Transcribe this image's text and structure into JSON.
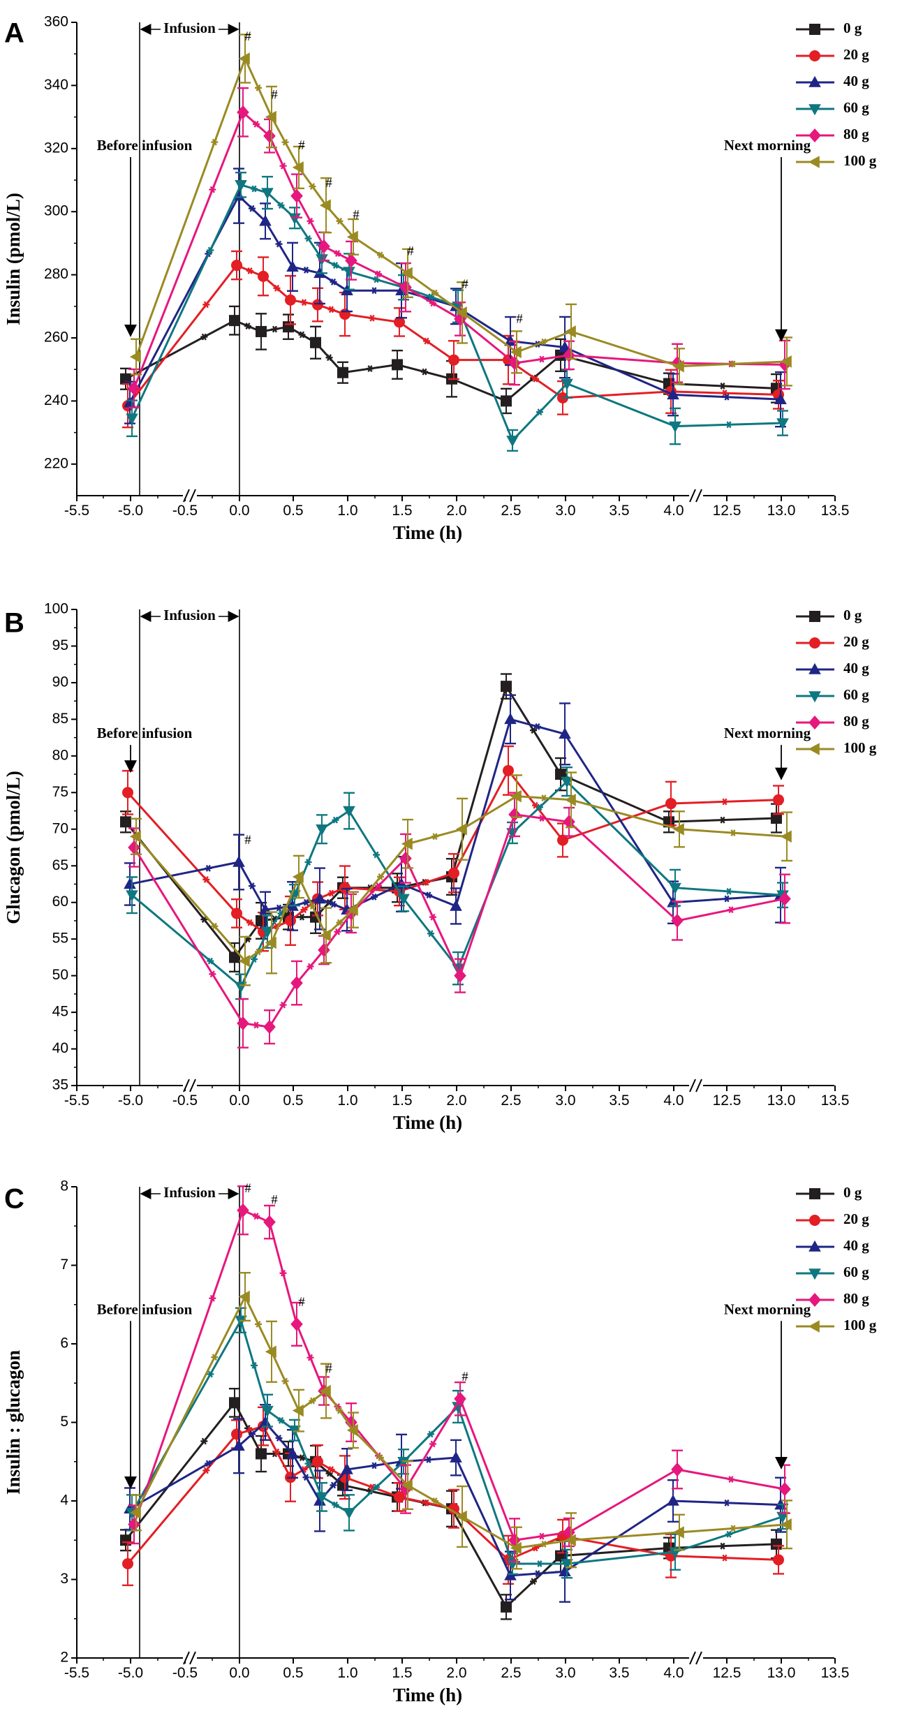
{
  "colors": {
    "0 g": "#231f20",
    "20 g": "#e31e24",
    "40 g": "#1f2586",
    "60 g": "#0e7780",
    "80 g": "#e6177d",
    "100 g": "#9a8a22"
  },
  "markers": {
    "0 g": "square",
    "20 g": "circle",
    "40 g": "triangle-up",
    "60 g": "triangle-down",
    "80 g": "diamond",
    "100 g": "triangle-left"
  },
  "chart_data": [
    {
      "type": "line",
      "panel": "A",
      "ylabel": "Insulin (pmol/L)",
      "xlabel": "Time (h)",
      "ylim": [
        210,
        360
      ],
      "yticks": [
        220,
        240,
        260,
        280,
        300,
        320,
        340,
        360
      ],
      "xticks": [
        "-5.5",
        "-5.0",
        "-0.5",
        "0.0",
        "0.5",
        "1.0",
        "1.5",
        "2.0",
        "2.5",
        "3.0",
        "3.5",
        "4.0",
        "12.5",
        "13.0",
        "13.5"
      ],
      "x": [
        "-5.0",
        "0.0",
        "0.25",
        "0.5",
        "0.75",
        "1.0",
        "1.5",
        "2.0",
        "2.5",
        "3.0",
        "4.0",
        "13.0"
      ],
      "series": [
        {
          "name": "0 g",
          "values": [
            247,
            265.5,
            262,
            263.5,
            258.5,
            249,
            251.5,
            247,
            240,
            254.5,
            245.5,
            244
          ]
        },
        {
          "name": "20 g",
          "values": [
            238.5,
            283,
            279.5,
            272,
            270.5,
            267.5,
            265,
            253,
            253,
            241,
            243,
            242
          ]
        },
        {
          "name": "40 g",
          "values": [
            239.5,
            305,
            297,
            282.5,
            280.5,
            275,
            275,
            270,
            259,
            257,
            242,
            240.5
          ]
        },
        {
          "name": "60 g",
          "values": [
            234.5,
            308.5,
            306,
            298,
            285,
            281,
            276,
            270,
            227.5,
            245.5,
            232,
            233
          ]
        },
        {
          "name": "80 g",
          "values": [
            244,
            331.5,
            324,
            305,
            289,
            284.5,
            276,
            266,
            252,
            254.5,
            252,
            251.5
          ]
        },
        {
          "name": "100 g",
          "values": [
            254,
            348.5,
            330,
            314,
            302,
            292,
            280.5,
            268,
            255.5,
            262,
            251,
            252.5
          ]
        }
      ],
      "significance": [
        "0.0",
        "0.25",
        "0.5",
        "0.75",
        "1.0",
        "1.5",
        "2.0",
        "2.5"
      ],
      "annotations": {
        "infusion": "Infusion",
        "before": "Before infusion",
        "next": "Next morning",
        "hash": "#"
      },
      "legend": [
        "0 g",
        "20 g",
        "40 g",
        "60 g",
        "80 g",
        "100 g"
      ],
      "legend_position": "top-right"
    },
    {
      "type": "line",
      "panel": "B",
      "ylabel": "Glucagon (pmol/L)",
      "xlabel": "Time (h)",
      "ylim": [
        35,
        100
      ],
      "yticks": [
        35,
        40,
        45,
        50,
        55,
        60,
        65,
        70,
        75,
        80,
        85,
        90,
        95,
        100
      ],
      "xticks": [
        "-5.5",
        "-5.0",
        "-0.5",
        "0.0",
        "0.5",
        "1.0",
        "1.5",
        "2.0",
        "2.5",
        "3.0",
        "3.5",
        "4.0",
        "12.5",
        "13.0",
        "13.5"
      ],
      "x": [
        "-5.0",
        "0.0",
        "0.25",
        "0.5",
        "0.75",
        "1.0",
        "1.5",
        "2.0",
        "2.5",
        "3.0",
        "4.0",
        "13.0"
      ],
      "series": [
        {
          "name": "0 g",
          "values": [
            71,
            52.5,
            57.5,
            58,
            58,
            62,
            62,
            63.5,
            89.5,
            77.5,
            71,
            71.5
          ]
        },
        {
          "name": "20 g",
          "values": [
            75,
            58.5,
            56,
            57.5,
            60.5,
            62,
            61.5,
            64,
            78,
            68.5,
            73.5,
            74
          ]
        },
        {
          "name": "40 g",
          "values": [
            62.5,
            65.5,
            59,
            59.5,
            60.5,
            59,
            62.5,
            59.5,
            85,
            83,
            60,
            61
          ]
        },
        {
          "name": "60 g",
          "values": [
            61,
            48.5,
            56,
            61,
            70,
            72.5,
            60.5,
            51,
            69.5,
            76.5,
            62,
            61
          ]
        },
        {
          "name": "80 g",
          "values": [
            67.5,
            43.5,
            43,
            49,
            53.5,
            58.5,
            66,
            50,
            72,
            71,
            57.5,
            60.5
          ]
        },
        {
          "name": "100 g",
          "values": [
            69,
            52,
            54.5,
            63.5,
            55.5,
            59,
            68,
            70,
            74.5,
            74,
            70,
            69
          ]
        }
      ],
      "significance": [
        "0.0"
      ],
      "annotations": {
        "infusion": "Infusion",
        "before": "Before infusion",
        "next": "Next morning",
        "hash": "#"
      },
      "legend": [
        "0 g",
        "20 g",
        "40 g",
        "60 g",
        "80 g",
        "100 g"
      ],
      "legend_position": "top-right"
    },
    {
      "type": "line",
      "panel": "C",
      "ylabel": "Insulin : glucagon",
      "xlabel": "Time (h)",
      "ylim": [
        2,
        8
      ],
      "yticks": [
        2,
        3,
        4,
        5,
        6,
        7,
        8
      ],
      "xticks": [
        "-5.5",
        "-5.0",
        "-0.5",
        "0.0",
        "0.5",
        "1.0",
        "1.5",
        "2.0",
        "2.5",
        "3.0",
        "3.5",
        "4.0",
        "12.5",
        "13.0",
        "13.5"
      ],
      "x": [
        "-5.0",
        "0.0",
        "0.25",
        "0.5",
        "0.75",
        "1.0",
        "1.5",
        "2.0",
        "2.5",
        "3.0",
        "4.0",
        "13.0"
      ],
      "series": [
        {
          "name": "0 g",
          "values": [
            3.5,
            5.25,
            4.6,
            4.6,
            4.5,
            4.2,
            4.05,
            3.9,
            2.65,
            3.3,
            3.4,
            3.45
          ]
        },
        {
          "name": "20 g",
          "values": [
            3.2,
            4.85,
            4.95,
            4.3,
            4.5,
            4.3,
            4.05,
            3.9,
            3.25,
            3.55,
            3.3,
            3.25
          ]
        },
        {
          "name": "40 g",
          "values": [
            3.9,
            4.7,
            5.0,
            4.6,
            4.0,
            4.4,
            4.5,
            4.55,
            3.05,
            3.1,
            4.0,
            3.95
          ]
        },
        {
          "name": "60 g",
          "values": [
            3.85,
            6.3,
            5.15,
            4.9,
            4.05,
            3.85,
            4.5,
            5.2,
            3.2,
            3.2,
            3.35,
            3.8
          ]
        },
        {
          "name": "80 g",
          "values": [
            3.7,
            7.7,
            7.55,
            6.25,
            5.4,
            5.0,
            4.15,
            5.3,
            3.5,
            3.6,
            4.4,
            4.15
          ]
        },
        {
          "name": "100 g",
          "values": [
            3.85,
            6.6,
            5.9,
            5.15,
            5.4,
            4.9,
            4.2,
            3.8,
            3.4,
            3.5,
            3.6,
            3.7
          ]
        }
      ],
      "significance": [
        "0.0",
        "0.25",
        "0.5",
        "0.75",
        "2.0"
      ],
      "annotations": {
        "infusion": "Infusion",
        "before": "Before infusion",
        "next": "Next morning",
        "hash": "#"
      },
      "legend": [
        "0 g",
        "20 g",
        "40 g",
        "60 g",
        "80 g",
        "100 g"
      ],
      "legend_position": "top-right"
    }
  ]
}
